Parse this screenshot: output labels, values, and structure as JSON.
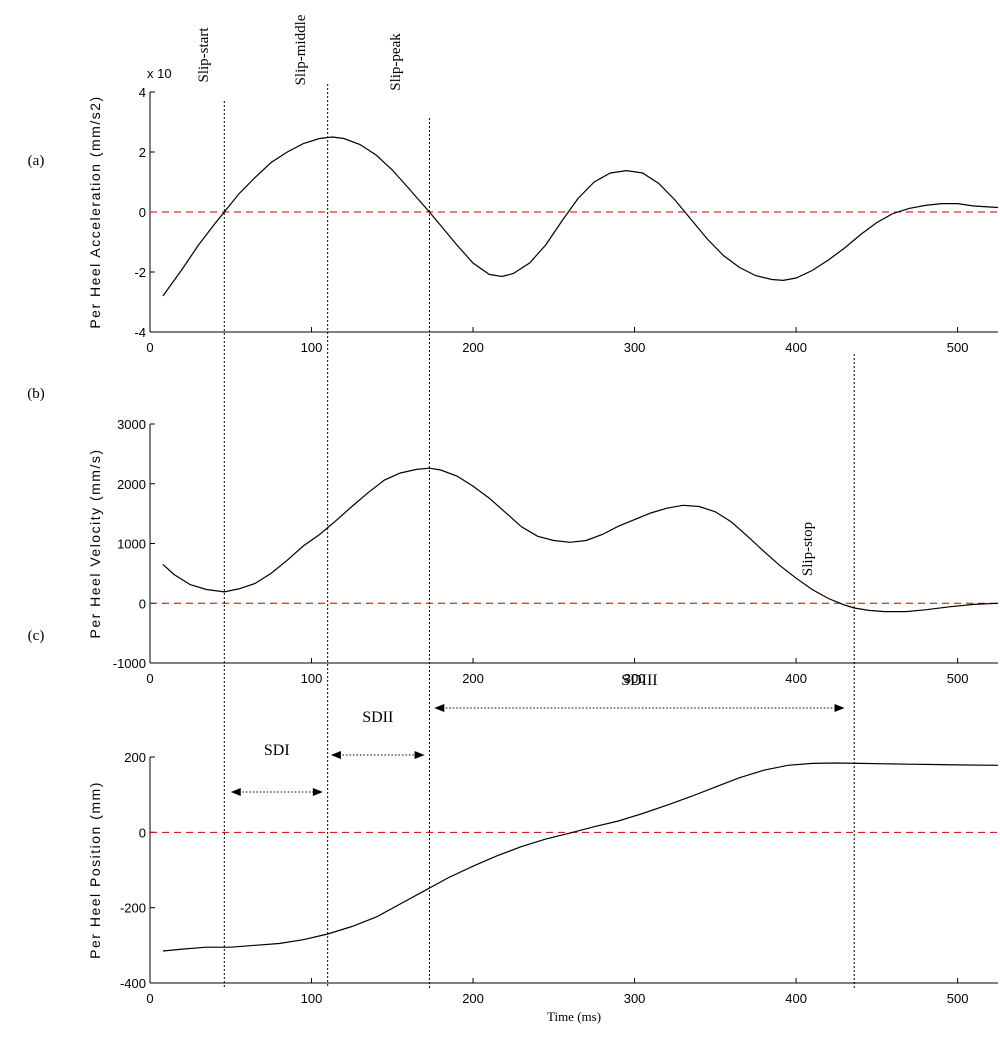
{
  "figure": {
    "panel_labels": [
      "(a)",
      "(b)",
      "(c)"
    ],
    "event_lines": [
      {
        "name": "Slip-start",
        "x": 46
      },
      {
        "name": "Slip-middle",
        "x": 110
      },
      {
        "name": "Slip-peak",
        "x": 173
      },
      {
        "name": "Slip-stop",
        "x": 436
      }
    ],
    "intervals": [
      {
        "label": "SDI",
        "from": 50,
        "to": 107
      },
      {
        "label": "SDII",
        "from": 112,
        "to": 170
      },
      {
        "label": "SDIII",
        "from": 176,
        "to": 430
      }
    ],
    "colors": {
      "curve": "#000000",
      "zero_line": "#cc0000",
      "event_line": "#000000"
    }
  },
  "chart_data": [
    {
      "type": "line",
      "panel": "(a)",
      "xlabel": "",
      "ylabel": "Per Heel Acceleration (mm/s2)",
      "y_exponent_label": "x 10",
      "xlim": [
        0,
        525
      ],
      "ylim": [
        -4,
        4
      ],
      "xticks": [
        0,
        100,
        200,
        300,
        400,
        500
      ],
      "yticks": [
        -4,
        -2,
        0,
        2,
        4
      ],
      "zero_line": true,
      "x": [
        8,
        20,
        30,
        40,
        46,
        55,
        65,
        75,
        85,
        95,
        105,
        113,
        120,
        130,
        140,
        150,
        160,
        173,
        180,
        190,
        200,
        210,
        218,
        225,
        235,
        245,
        255,
        265,
        275,
        285,
        295,
        305,
        315,
        325,
        335,
        345,
        355,
        365,
        375,
        385,
        392,
        400,
        410,
        420,
        430,
        440,
        450,
        460,
        470,
        480,
        490,
        500,
        510,
        525
      ],
      "y": [
        -2.8,
        -1.9,
        -1.1,
        -0.4,
        0.0,
        0.6,
        1.15,
        1.65,
        2.0,
        2.28,
        2.45,
        2.5,
        2.45,
        2.25,
        1.9,
        1.4,
        0.8,
        0.0,
        -0.45,
        -1.1,
        -1.7,
        -2.08,
        -2.15,
        -2.05,
        -1.7,
        -1.1,
        -0.3,
        0.45,
        1.0,
        1.3,
        1.38,
        1.3,
        0.95,
        0.4,
        -0.25,
        -0.9,
        -1.45,
        -1.85,
        -2.12,
        -2.25,
        -2.28,
        -2.2,
        -1.95,
        -1.6,
        -1.2,
        -0.75,
        -0.35,
        -0.05,
        0.12,
        0.22,
        0.28,
        0.28,
        0.2,
        0.15
      ]
    },
    {
      "type": "line",
      "panel": "(b)",
      "xlabel": "",
      "ylabel": "Per Heel Velocity (mm/s)",
      "xlim": [
        0,
        525
      ],
      "ylim": [
        -1000,
        3000
      ],
      "xticks": [
        0,
        100,
        200,
        300,
        400,
        500
      ],
      "yticks": [
        -1000,
        0,
        1000,
        2000,
        3000
      ],
      "zero_line": true,
      "x": [
        8,
        15,
        25,
        35,
        46,
        55,
        65,
        75,
        85,
        95,
        105,
        115,
        125,
        135,
        145,
        155,
        165,
        173,
        180,
        190,
        200,
        210,
        220,
        230,
        240,
        250,
        260,
        270,
        280,
        290,
        300,
        310,
        320,
        330,
        340,
        350,
        360,
        370,
        380,
        390,
        400,
        410,
        420,
        430,
        436,
        445,
        455,
        468,
        480,
        495,
        510,
        525
      ],
      "y": [
        650,
        480,
        310,
        230,
        190,
        240,
        330,
        500,
        720,
        960,
        1150,
        1380,
        1620,
        1850,
        2060,
        2180,
        2240,
        2260,
        2230,
        2130,
        1960,
        1760,
        1520,
        1280,
        1120,
        1050,
        1020,
        1050,
        1150,
        1290,
        1400,
        1510,
        1590,
        1640,
        1620,
        1530,
        1360,
        1120,
        870,
        630,
        420,
        230,
        80,
        -30,
        -80,
        -120,
        -140,
        -140,
        -110,
        -60,
        -20,
        0
      ]
    },
    {
      "type": "line",
      "panel": "(c)",
      "xlabel": "Time (ms)",
      "ylabel": "Per Heel Position (mm)",
      "xlim": [
        0,
        525
      ],
      "ylim": [
        -400,
        200
      ],
      "xticks": [
        0,
        100,
        200,
        300,
        400,
        500
      ],
      "yticks": [
        -400,
        -200,
        0,
        200
      ],
      "zero_line": true,
      "x": [
        8,
        20,
        35,
        50,
        65,
        80,
        95,
        110,
        125,
        140,
        155,
        170,
        185,
        200,
        215,
        230,
        245,
        260,
        275,
        290,
        305,
        320,
        335,
        350,
        365,
        380,
        395,
        410,
        425,
        440,
        455,
        470,
        485,
        500,
        525
      ],
      "y": [
        -315,
        -310,
        -305,
        -305,
        -300,
        -295,
        -285,
        -270,
        -250,
        -225,
        -190,
        -155,
        -120,
        -90,
        -62,
        -38,
        -18,
        -2,
        15,
        30,
        50,
        72,
        95,
        120,
        145,
        165,
        178,
        183,
        184,
        183,
        182,
        181,
        180,
        179,
        178
      ]
    }
  ]
}
